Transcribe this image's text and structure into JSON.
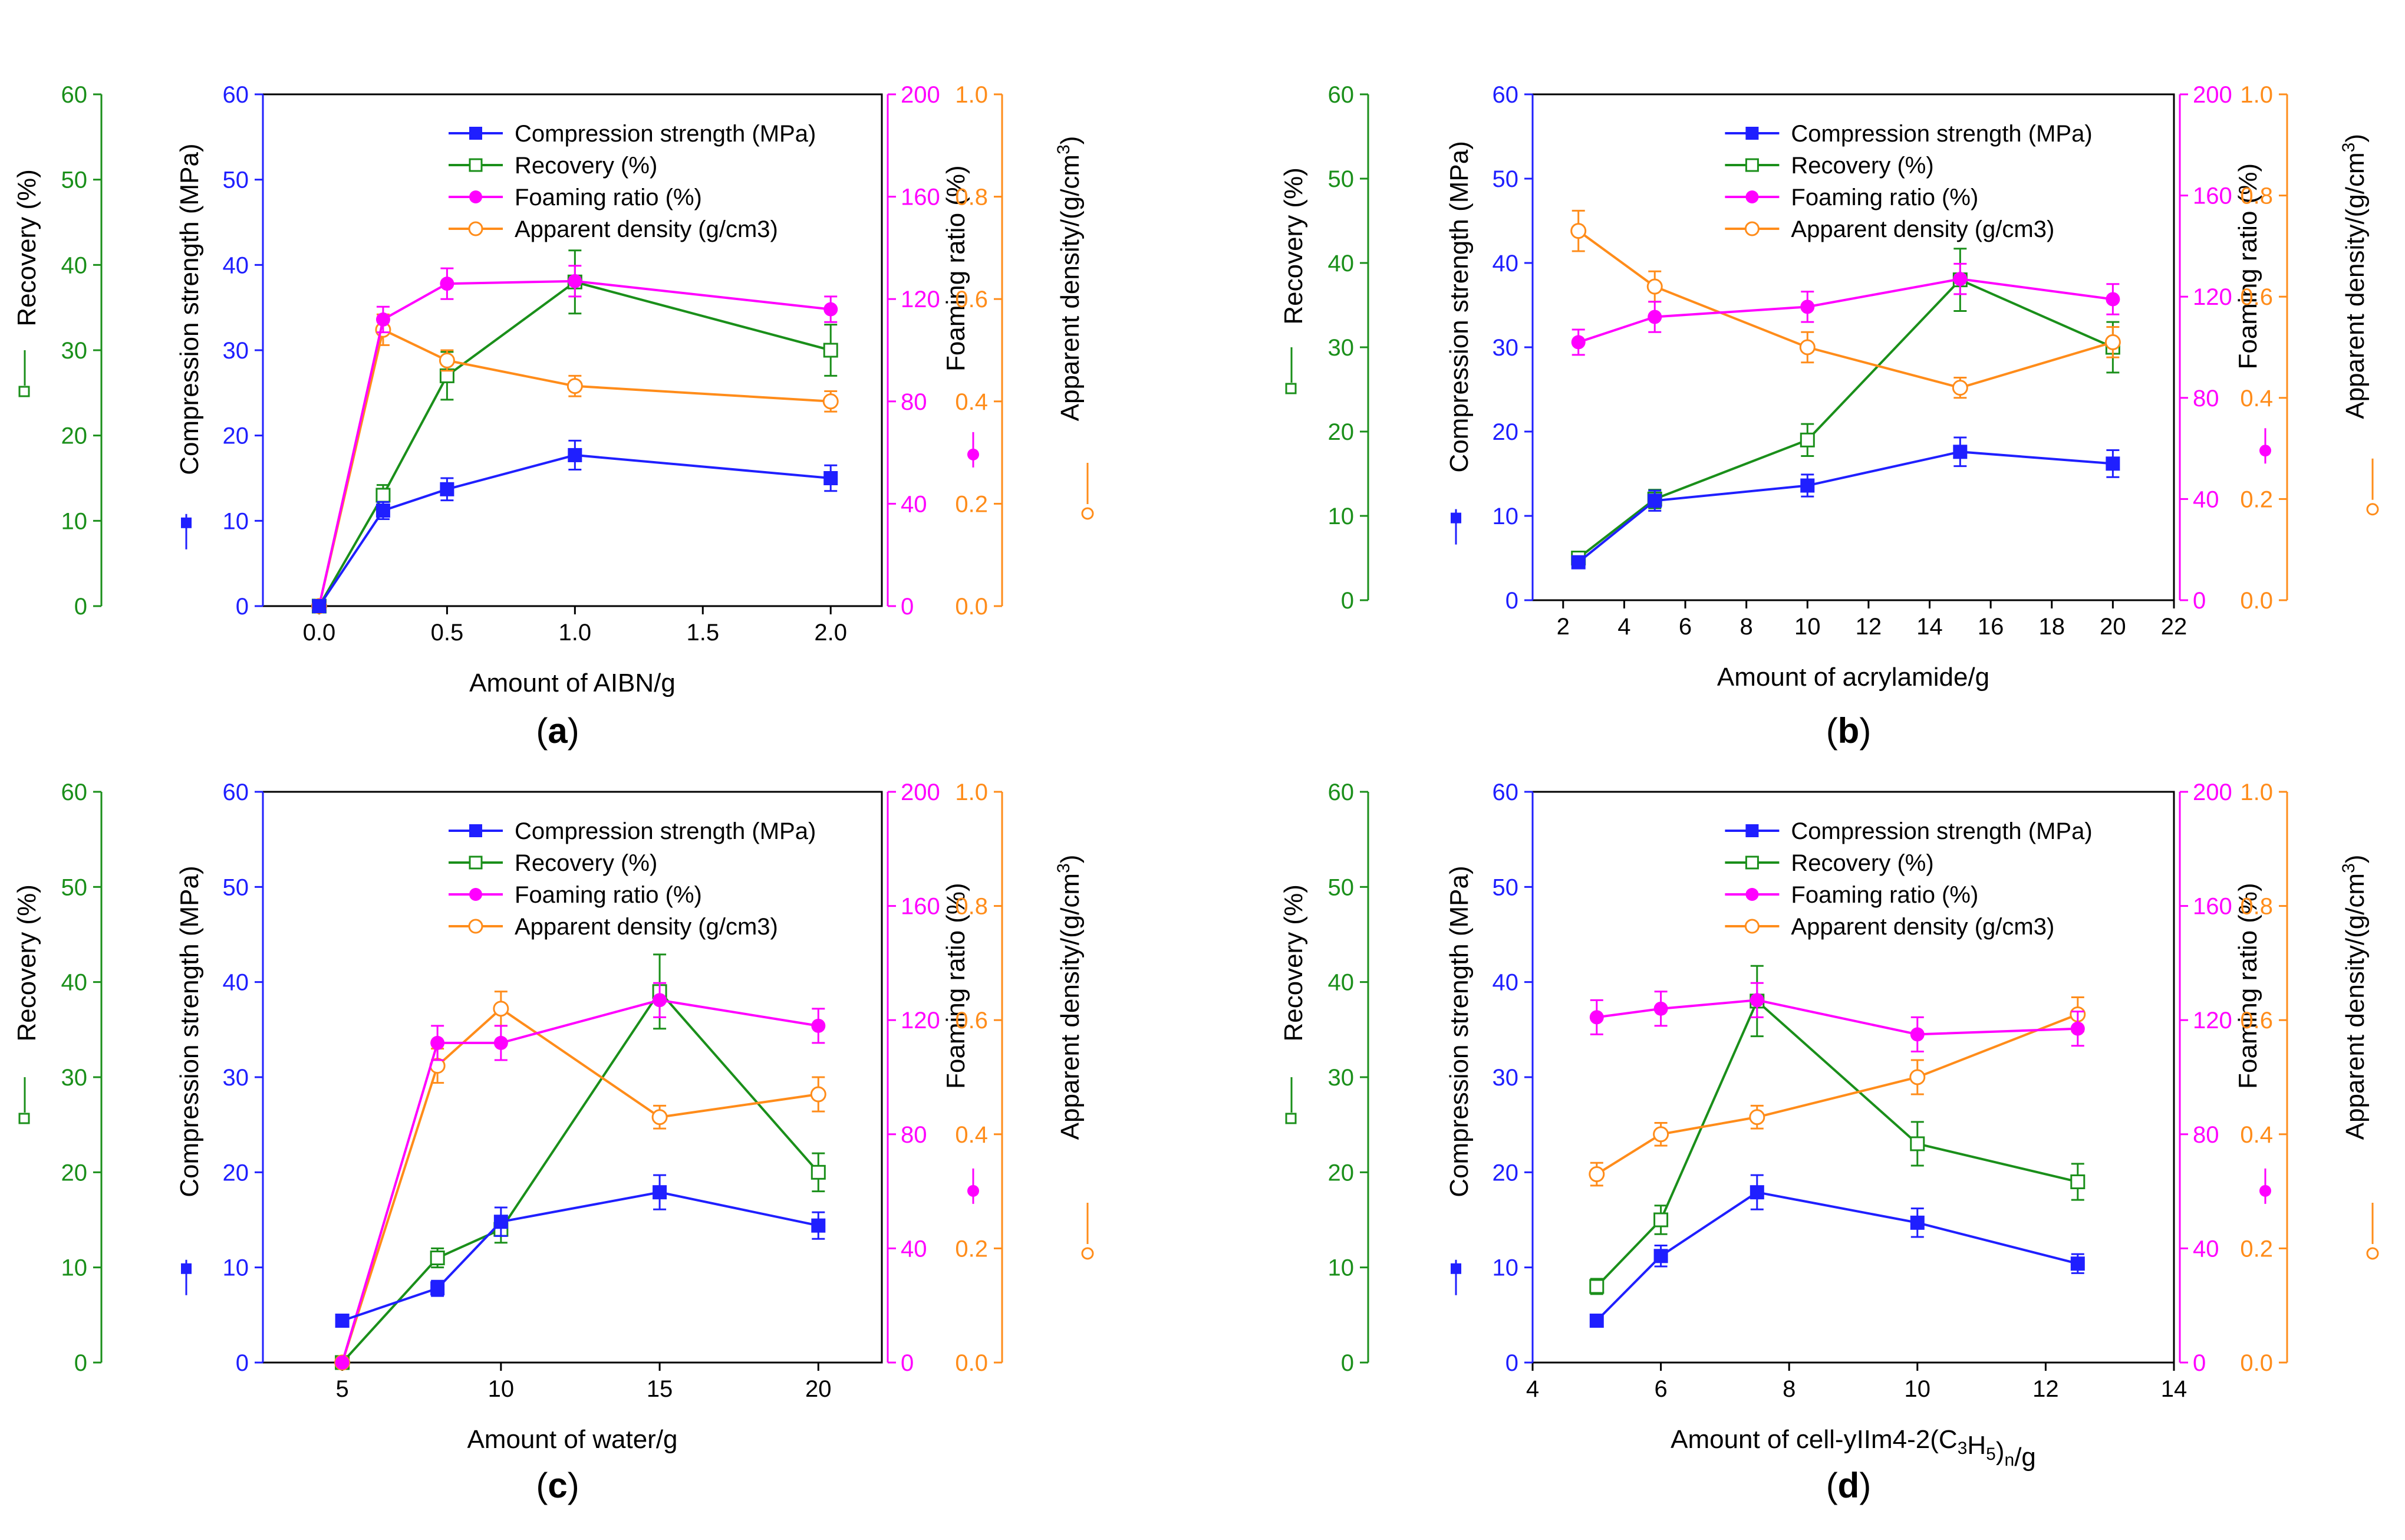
{
  "figure": {
    "panel_labels": [
      "(a)",
      "(b)",
      "(c)",
      "(d)"
    ]
  },
  "chart_data": [
    {
      "panel": "(a)",
      "type": "line",
      "xlabel": "Amount of AIBN/g",
      "xlim": [
        -0.22,
        2.2
      ],
      "xticks": [
        0.0,
        0.5,
        1.0,
        1.5,
        2.0
      ],
      "xtick_labels": [
        "0.0",
        "0.5",
        "1.0",
        "1.5",
        "2.0"
      ],
      "axes": {
        "recovery": {
          "label": "Recovery (%)",
          "range": [
            0,
            60
          ],
          "ticks": [
            0,
            10,
            20,
            30,
            40,
            50,
            60
          ],
          "color": "#1a8f1a"
        },
        "compression": {
          "label": "Compression strength (MPa)",
          "range": [
            0,
            60
          ],
          "ticks": [
            0,
            10,
            20,
            30,
            40,
            50,
            60
          ],
          "color": "#1f1fff"
        },
        "foaming": {
          "label": "Foaming ratio (%)",
          "range": [
            0,
            200
          ],
          "ticks": [
            0,
            40,
            80,
            120,
            160,
            200
          ],
          "color": "#ff00ff"
        },
        "density": {
          "label": "Apparent density/(g/cm",
          "label_sup": "3",
          "label_end": ")",
          "range": [
            0,
            1
          ],
          "ticks": [
            0.0,
            0.2,
            0.4,
            0.6,
            0.8,
            1.0
          ],
          "tick_labels": [
            "0.0",
            "0.2",
            "0.4",
            "0.6",
            "0.8",
            "1.0"
          ],
          "color": "#ff8c1a"
        }
      },
      "series": [
        {
          "name": "Compression strength (MPa)",
          "axis": "compression",
          "color": "#1f1fff",
          "marker": "square-filled",
          "x": [
            0,
            0.25,
            0.5,
            1.0,
            2.0
          ],
          "y": [
            0,
            11.2,
            13.7,
            17.7,
            15.0
          ],
          "err": [
            0,
            1.0,
            1.3,
            1.7,
            1.5
          ]
        },
        {
          "name": "Recovery (%)",
          "axis": "recovery",
          "color": "#1a8f1a",
          "marker": "square-open",
          "x": [
            0,
            0.25,
            0.5,
            1.0,
            2.0
          ],
          "y": [
            0,
            13.0,
            27.0,
            38.0,
            30.0
          ],
          "err": [
            0,
            1.2,
            2.8,
            3.7,
            3.0
          ]
        },
        {
          "name": "Foaming ratio (%)",
          "axis": "foaming",
          "color": "#ff00ff",
          "marker": "circle-filled",
          "x": [
            0,
            0.25,
            0.5,
            1.0,
            2.0
          ],
          "y": [
            0,
            112,
            126,
            127,
            116
          ],
          "err": [
            0,
            5,
            6,
            6,
            5
          ]
        },
        {
          "name": "Apparent density (g/cm3)",
          "axis": "density",
          "color": "#ff8c1a",
          "marker": "circle-open",
          "x": [
            0,
            0.25,
            0.5,
            1.0,
            2.0
          ],
          "y": [
            0,
            0.54,
            0.48,
            0.43,
            0.4
          ],
          "err": [
            0,
            0.03,
            0.02,
            0.02,
            0.02
          ]
        }
      ]
    },
    {
      "panel": "(b)",
      "type": "line",
      "xlabel": "Amount of acrylamide/g",
      "xlim": [
        1.0,
        22.0
      ],
      "xticks": [
        2,
        4,
        6,
        8,
        10,
        12,
        14,
        16,
        18,
        20,
        22
      ],
      "xtick_labels": [
        "2",
        "4",
        "6",
        "8",
        "10",
        "12",
        "14",
        "16",
        "18",
        "20",
        "22"
      ],
      "axes": {
        "recovery": {
          "label": "Recovery (%)",
          "range": [
            0,
            60
          ],
          "ticks": [
            0,
            10,
            20,
            30,
            40,
            50,
            60
          ],
          "color": "#1a8f1a"
        },
        "compression": {
          "label": "Compression strength (MPa)",
          "range": [
            0,
            60
          ],
          "ticks": [
            0,
            10,
            20,
            30,
            40,
            50,
            60
          ],
          "color": "#1f1fff"
        },
        "foaming": {
          "label": "Foaming ratio (%)",
          "range": [
            0,
            200
          ],
          "ticks": [
            0,
            40,
            80,
            120,
            160,
            200
          ],
          "color": "#ff00ff"
        },
        "density": {
          "label": "Apparent density/(g/cm",
          "label_sup": "3",
          "label_end": ")",
          "range": [
            0,
            1
          ],
          "ticks": [
            0.0,
            0.2,
            0.4,
            0.6,
            0.8,
            1.0
          ],
          "tick_labels": [
            "0.0",
            "0.2",
            "0.4",
            "0.6",
            "0.8",
            "1.0"
          ],
          "color": "#ff8c1a"
        }
      },
      "series": [
        {
          "name": "Compression strength (MPa)",
          "axis": "compression",
          "color": "#1f1fff",
          "marker": "square-filled",
          "x": [
            2.5,
            5,
            10,
            15,
            20
          ],
          "y": [
            4.5,
            11.8,
            13.6,
            17.6,
            16.2
          ],
          "err": [
            0.5,
            1.2,
            1.3,
            1.7,
            1.6
          ]
        },
        {
          "name": "Recovery (%)",
          "axis": "recovery",
          "color": "#1a8f1a",
          "marker": "square-open",
          "x": [
            2.5,
            5,
            10,
            15,
            20
          ],
          "y": [
            5.0,
            12.0,
            19.0,
            38.0,
            30.0
          ],
          "err": [
            0.5,
            1.1,
            1.9,
            3.7,
            3.0
          ]
        },
        {
          "name": "Foaming ratio (%)",
          "axis": "foaming",
          "color": "#ff00ff",
          "marker": "circle-filled",
          "x": [
            2.5,
            5,
            10,
            15,
            20
          ],
          "y": [
            102,
            112,
            116,
            127,
            119
          ],
          "err": [
            5,
            6,
            6,
            6,
            6
          ]
        },
        {
          "name": "Apparent density (g/cm3)",
          "axis": "density",
          "color": "#ff8c1a",
          "marker": "circle-open",
          "x": [
            2.5,
            5,
            10,
            15,
            20
          ],
          "y": [
            0.73,
            0.62,
            0.5,
            0.42,
            0.51
          ],
          "err": [
            0.04,
            0.03,
            0.03,
            0.02,
            0.03
          ]
        }
      ]
    },
    {
      "panel": "(c)",
      "type": "line",
      "xlabel": "Amount of water/g",
      "xlim": [
        2.5,
        22.0
      ],
      "xticks": [
        5,
        10,
        15,
        20
      ],
      "xtick_labels": [
        "5",
        "10",
        "15",
        "20"
      ],
      "axes": {
        "recovery": {
          "label": "Recovery (%)",
          "range": [
            0,
            60
          ],
          "ticks": [
            0,
            10,
            20,
            30,
            40,
            50,
            60
          ],
          "color": "#1a8f1a"
        },
        "compression": {
          "label": "Compression strength (MPa)",
          "range": [
            0,
            60
          ],
          "ticks": [
            0,
            10,
            20,
            30,
            40,
            50,
            60
          ],
          "color": "#1f1fff"
        },
        "foaming": {
          "label": "Foaming ratio (%)",
          "range": [
            0,
            200
          ],
          "ticks": [
            0,
            40,
            80,
            120,
            160,
            200
          ],
          "color": "#ff00ff"
        },
        "density": {
          "label": "Apparent density/(g/cm",
          "label_sup": "3",
          "label_end": ")",
          "range": [
            0,
            1
          ],
          "ticks": [
            0.0,
            0.2,
            0.4,
            0.6,
            0.8,
            1.0
          ],
          "tick_labels": [
            "0.0",
            "0.2",
            "0.4",
            "0.6",
            "0.8",
            "1.0"
          ],
          "color": "#ff8c1a"
        }
      },
      "series": [
        {
          "name": "Compression strength (MPa)",
          "axis": "compression",
          "color": "#1f1fff",
          "marker": "square-filled",
          "x": [
            5,
            8,
            10,
            15,
            20
          ],
          "y": [
            4.4,
            7.8,
            14.8,
            17.9,
            14.4
          ],
          "err": [
            0.4,
            0.8,
            1.5,
            1.8,
            1.4
          ]
        },
        {
          "name": "Recovery (%)",
          "axis": "recovery",
          "color": "#1a8f1a",
          "marker": "square-open",
          "x": [
            5,
            8,
            10,
            15,
            20
          ],
          "y": [
            0,
            11.0,
            14.0,
            39.0,
            20.0
          ],
          "err": [
            0,
            1.0,
            1.4,
            3.9,
            2.0
          ]
        },
        {
          "name": "Foaming ratio (%)",
          "axis": "foaming",
          "color": "#ff00ff",
          "marker": "circle-filled",
          "x": [
            5,
            8,
            10,
            15,
            20
          ],
          "y": [
            0,
            112,
            112,
            127,
            118
          ],
          "err": [
            0,
            6,
            6,
            6,
            6
          ]
        },
        {
          "name": "Apparent density (g/cm3)",
          "axis": "density",
          "color": "#ff8c1a",
          "marker": "circle-open",
          "x": [
            5,
            8,
            10,
            15,
            20
          ],
          "y": [
            0,
            0.52,
            0.62,
            0.43,
            0.47
          ],
          "err": [
            0,
            0.03,
            0.03,
            0.02,
            0.03
          ]
        }
      ]
    },
    {
      "panel": "(d)",
      "type": "line",
      "xlabel": "Amount of cell-yIIm4-2(C",
      "xlabel_sub1": "3",
      "xlabel_mid": "H",
      "xlabel_sub2": "5",
      "xlabel_end": ")",
      "xlabel_sub3": "n",
      "xlabel_tail": "/g",
      "xlim": [
        4.0,
        14.0
      ],
      "xticks": [
        4,
        6,
        8,
        10,
        12,
        14
      ],
      "xtick_labels": [
        "4",
        "6",
        "8",
        "10",
        "12",
        "14"
      ],
      "axes": {
        "recovery": {
          "label": "Recovery (%)",
          "range": [
            0,
            60
          ],
          "ticks": [
            0,
            10,
            20,
            30,
            40,
            50,
            60
          ],
          "color": "#1a8f1a"
        },
        "compression": {
          "label": "Compression strength (MPa)",
          "range": [
            0,
            60
          ],
          "ticks": [
            0,
            10,
            20,
            30,
            40,
            50,
            60
          ],
          "color": "#1f1fff"
        },
        "foaming": {
          "label": "Foaming ratio (%)",
          "range": [
            0,
            200
          ],
          "ticks": [
            0,
            40,
            80,
            120,
            160,
            200
          ],
          "color": "#ff00ff"
        },
        "density": {
          "label": "Apparent density/(g/cm",
          "label_sup": "3",
          "label_end": ")",
          "range": [
            0,
            1
          ],
          "ticks": [
            0.0,
            0.2,
            0.4,
            0.6,
            0.8,
            1.0
          ],
          "tick_labels": [
            "0.0",
            "0.2",
            "0.4",
            "0.6",
            "0.8",
            "1.0"
          ],
          "color": "#ff8c1a"
        }
      },
      "series": [
        {
          "name": "Compression strength (MPa)",
          "axis": "compression",
          "color": "#1f1fff",
          "marker": "square-filled",
          "x": [
            5,
            6,
            7.5,
            10,
            12.5
          ],
          "y": [
            4.4,
            11.2,
            17.9,
            14.7,
            10.4
          ],
          "err": [
            0.4,
            1.1,
            1.8,
            1.5,
            1.0
          ]
        },
        {
          "name": "Recovery (%)",
          "axis": "recovery",
          "color": "#1a8f1a",
          "marker": "square-open",
          "x": [
            5,
            6,
            7.5,
            10,
            12.5
          ],
          "y": [
            8.0,
            15.0,
            38.0,
            23.0,
            19.0
          ],
          "err": [
            0.8,
            1.5,
            3.7,
            2.3,
            1.9
          ]
        },
        {
          "name": "Foaming ratio (%)",
          "axis": "foaming",
          "color": "#ff00ff",
          "marker": "circle-filled",
          "x": [
            5,
            6,
            7.5,
            10,
            12.5
          ],
          "y": [
            121,
            124,
            127,
            115,
            117
          ],
          "err": [
            6,
            6,
            6,
            6,
            6
          ]
        },
        {
          "name": "Apparent density (g/cm3)",
          "axis": "density",
          "color": "#ff8c1a",
          "marker": "circle-open",
          "x": [
            5,
            6,
            7.5,
            10,
            12.5
          ],
          "y": [
            0.33,
            0.4,
            0.43,
            0.5,
            0.61
          ],
          "err": [
            0.02,
            0.02,
            0.02,
            0.03,
            0.03
          ]
        }
      ]
    }
  ]
}
